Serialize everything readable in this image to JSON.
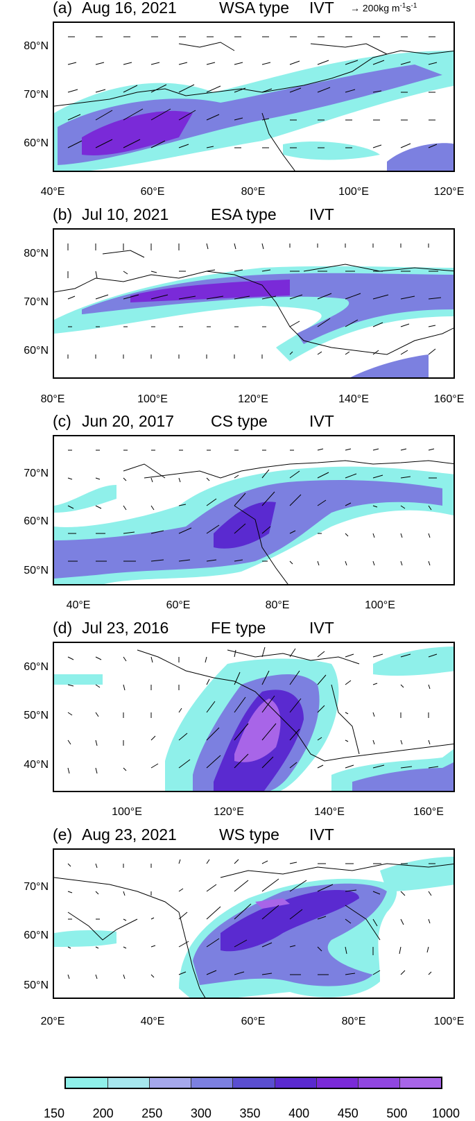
{
  "reference_vector": {
    "label": "200kg m-1s-1",
    "unit_label": "200kg m",
    "sup1": "-1",
    "mid": "s",
    "sup2": "-1"
  },
  "colors": {
    "low": "#8ff0ea",
    "mid1": "#b8e8ef",
    "mid2": "#7c80e0",
    "mid3": "#5a4ed0",
    "high": "#7a2ad8",
    "peak": "#a865e8"
  },
  "panels": [
    {
      "id": "a",
      "label": "(a)",
      "date": "Aug 16, 2021",
      "type": "WSA type",
      "var": "IVT",
      "lat_ticks": [
        "80°N",
        "70°N",
        "60°N"
      ],
      "lon_ticks": [
        "40°E",
        "60°E",
        "80°E",
        "100°E",
        "120°E"
      ]
    },
    {
      "id": "b",
      "label": "(b)",
      "date": "Jul 10, 2021",
      "type": "ESA type",
      "var": "IVT",
      "lat_ticks": [
        "80°N",
        "70°N",
        "60°N"
      ],
      "lon_ticks": [
        "80°E",
        "100°E",
        "120°E",
        "140°E",
        "160°E"
      ]
    },
    {
      "id": "c",
      "label": "(c)",
      "date": "Jun 20, 2017",
      "type": "CS type",
      "var": "IVT",
      "lat_ticks": [
        "70°N",
        "60°N",
        "50°N"
      ],
      "lon_ticks": [
        "40°E",
        "60°E",
        "80°E",
        "100°E"
      ]
    },
    {
      "id": "d",
      "label": "(d)",
      "date": "Jul 23, 2016",
      "type": "FE type",
      "var": "IVT",
      "lat_ticks": [
        "60°N",
        "50°N",
        "40°N"
      ],
      "lon_ticks": [
        "100°E",
        "120°E",
        "140°E",
        "160°E"
      ]
    },
    {
      "id": "e",
      "label": "(e)",
      "date": "Aug 23, 2021",
      "type": "WS type",
      "var": "IVT",
      "lat_ticks": [
        "70°N",
        "60°N",
        "50°N"
      ],
      "lon_ticks": [
        "20°E",
        "40°E",
        "60°E",
        "80°E",
        "100°E"
      ]
    }
  ],
  "colorbar": {
    "labels": [
      "150",
      "200",
      "250",
      "300",
      "350",
      "400",
      "450",
      "500",
      "1000"
    ],
    "segment_colors": [
      "#8ff0ea",
      "#a6e6ee",
      "#a5a8ec",
      "#7c80e0",
      "#5a4ed0",
      "#5a2ad0",
      "#7a2ad8",
      "#9046e0",
      "#a865e8"
    ]
  }
}
